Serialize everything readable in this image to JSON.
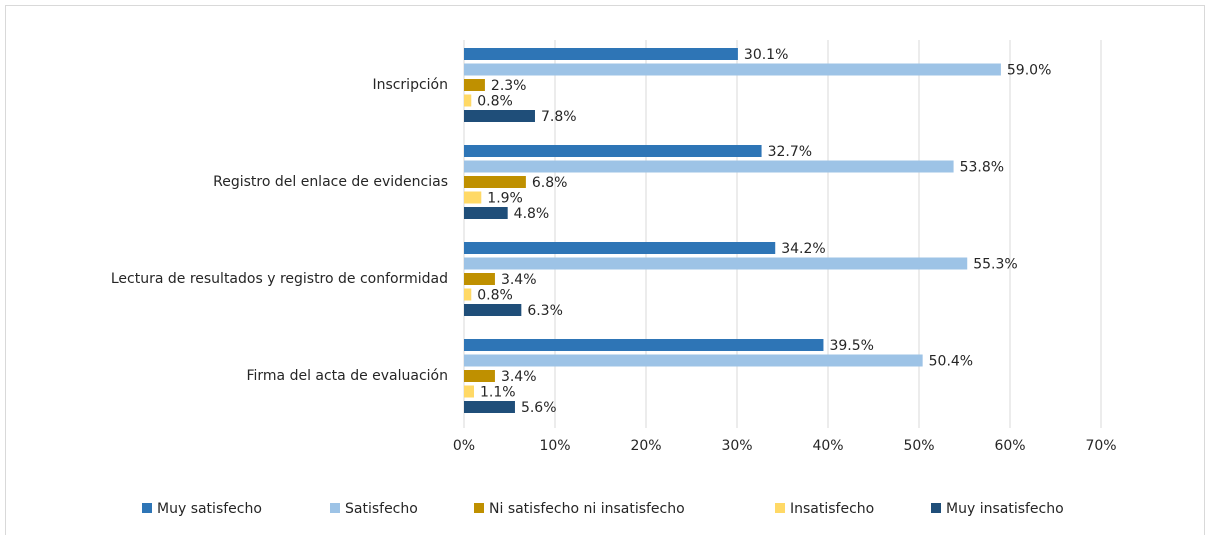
{
  "chart_data": {
    "type": "bar",
    "orientation": "horizontal",
    "categories": [
      "Inscripción",
      "Registro del enlace de evidencias",
      "Lectura de resultados y registro de conformidad",
      "Firma del acta de evaluación"
    ],
    "series": [
      {
        "name": "Muy satisfecho",
        "color": "#2e75b6",
        "values": [
          30.1,
          32.7,
          34.2,
          39.5
        ],
        "value_labels": [
          "30.1%",
          "32.7%",
          "34.2%",
          "39.5%"
        ]
      },
      {
        "name": "Satisfecho",
        "color": "#9dc3e6",
        "values": [
          59.0,
          53.8,
          55.3,
          50.4
        ],
        "value_labels": [
          "59.0%",
          "53.8%",
          "55.3%",
          "50.4%"
        ]
      },
      {
        "name": "Ni satisfecho ni insatisfecho",
        "color": "#bf9000",
        "values": [
          2.3,
          6.8,
          3.4,
          3.4
        ],
        "value_labels": [
          "2.3%",
          "6.8%",
          "3.4%",
          "3.4%"
        ]
      },
      {
        "name": "Insatisfecho",
        "color": "#ffd966",
        "values": [
          0.8,
          1.9,
          0.8,
          1.1
        ],
        "value_labels": [
          "0.8%",
          "1.9%",
          "0.8%",
          "1.1%"
        ]
      },
      {
        "name": "Muy insatisfecho",
        "color": "#1f4e79",
        "values": [
          7.8,
          4.8,
          6.3,
          5.6
        ],
        "value_labels": [
          "7.8%",
          "4.8%",
          "6.3%",
          "5.6%"
        ]
      }
    ],
    "xlim": [
      0,
      70
    ],
    "xticks": [
      {
        "value": 0,
        "label": "0%"
      },
      {
        "value": 10,
        "label": "10%"
      },
      {
        "value": 20,
        "label": "20%"
      },
      {
        "value": 30,
        "label": "30%"
      },
      {
        "value": 40,
        "label": "40%"
      },
      {
        "value": 50,
        "label": "50%"
      },
      {
        "value": 60,
        "label": "60%"
      },
      {
        "value": 70,
        "label": "70%"
      }
    ],
    "grid": true,
    "legend": "bottom"
  }
}
